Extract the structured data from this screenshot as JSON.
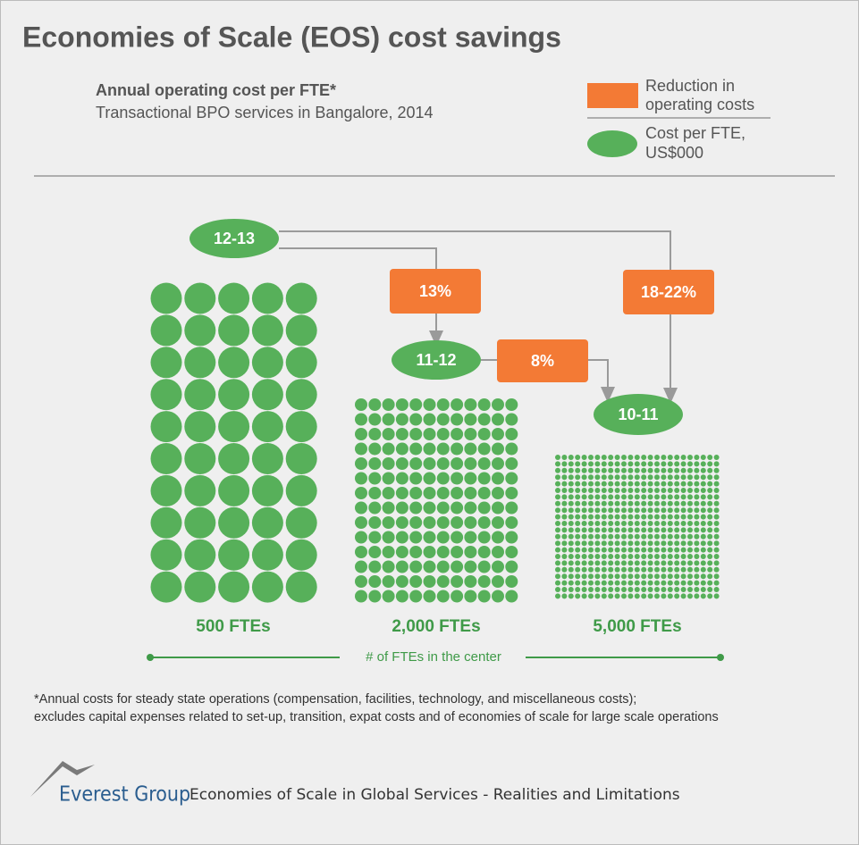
{
  "header": {
    "title": "Economies of Scale (EOS) cost savings",
    "subtitle": "Annual operating cost per FTE*",
    "subtitle_detail": "Transactional BPO services in Bangalore, 2014"
  },
  "legend": {
    "reduction": [
      "Reduction in",
      "operating costs"
    ],
    "cost": [
      "Cost per FTE,",
      "US$000"
    ]
  },
  "nodes": [
    {
      "label": "12-13"
    },
    {
      "label": "11-12"
    },
    {
      "label": "10-11"
    }
  ],
  "reductions": [
    {
      "label": "13%"
    },
    {
      "label": "8%"
    },
    {
      "label": "18-22%"
    }
  ],
  "groups": [
    {
      "label": "500 FTEs"
    },
    {
      "label": "2,000 FTEs"
    },
    {
      "label": "5,000 FTEs"
    }
  ],
  "axis_label": "# of FTEs in the center",
  "footnote": [
    "*Annual costs for steady state operations (compensation, facilities, technology, and miscellaneous costs);",
    "excludes capital expenses related to set-up, transition, expat costs and of economies of scale for large scale operations"
  ],
  "footer": {
    "brand": "Everest Group",
    "text": "Economies of Scale in Global Services - Realities and Limitations"
  }
}
